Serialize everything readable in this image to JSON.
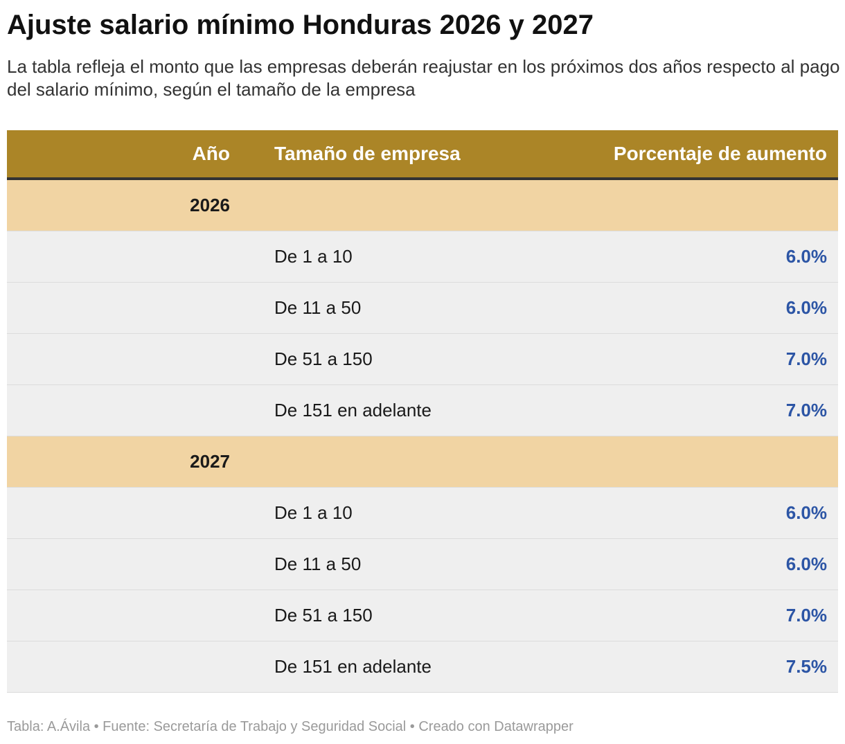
{
  "title": "Ajuste salario mínimo Honduras 2026 y 2027",
  "subtitle": "La tabla refleja el monto que las empresas deberán reajustar en los próximos dos años respecto al pago del salario mínimo, según el tamaño de la empresa",
  "columns": {
    "year": "Año",
    "size": "Tamaño de empresa",
    "percent": "Porcentaje de aumento"
  },
  "colors": {
    "header_bg": "#ab8527",
    "group_bg": "#f1d4a3",
    "row_bg": "#efefef",
    "value_text": "#2c55a5"
  },
  "chart_data": {
    "type": "table",
    "title": "Ajuste salario mínimo Honduras 2026 y 2027",
    "columns": [
      "Año",
      "Tamaño de empresa",
      "Porcentaje de aumento"
    ],
    "groups": [
      {
        "year": "2026",
        "rows": [
          {
            "size": "De 1 a 10",
            "percent": "6.0%"
          },
          {
            "size": "De 11 a 50",
            "percent": "6.0%"
          },
          {
            "size": "De 51 a 150",
            "percent": "7.0%"
          },
          {
            "size": "De 151 en adelante",
            "percent": "7.0%"
          }
        ]
      },
      {
        "year": "2027",
        "rows": [
          {
            "size": "De 1 a 10",
            "percent": "6.0%"
          },
          {
            "size": "De 11 a 50",
            "percent": "6.0%"
          },
          {
            "size": "De 51 a 150",
            "percent": "7.0%"
          },
          {
            "size": "De 151 en adelante",
            "percent": "7.5%"
          }
        ]
      }
    ]
  },
  "footer": "Tabla: A.Ávila • Fuente: Secretaría de Trabajo y Seguridad Social • Creado con Datawrapper"
}
